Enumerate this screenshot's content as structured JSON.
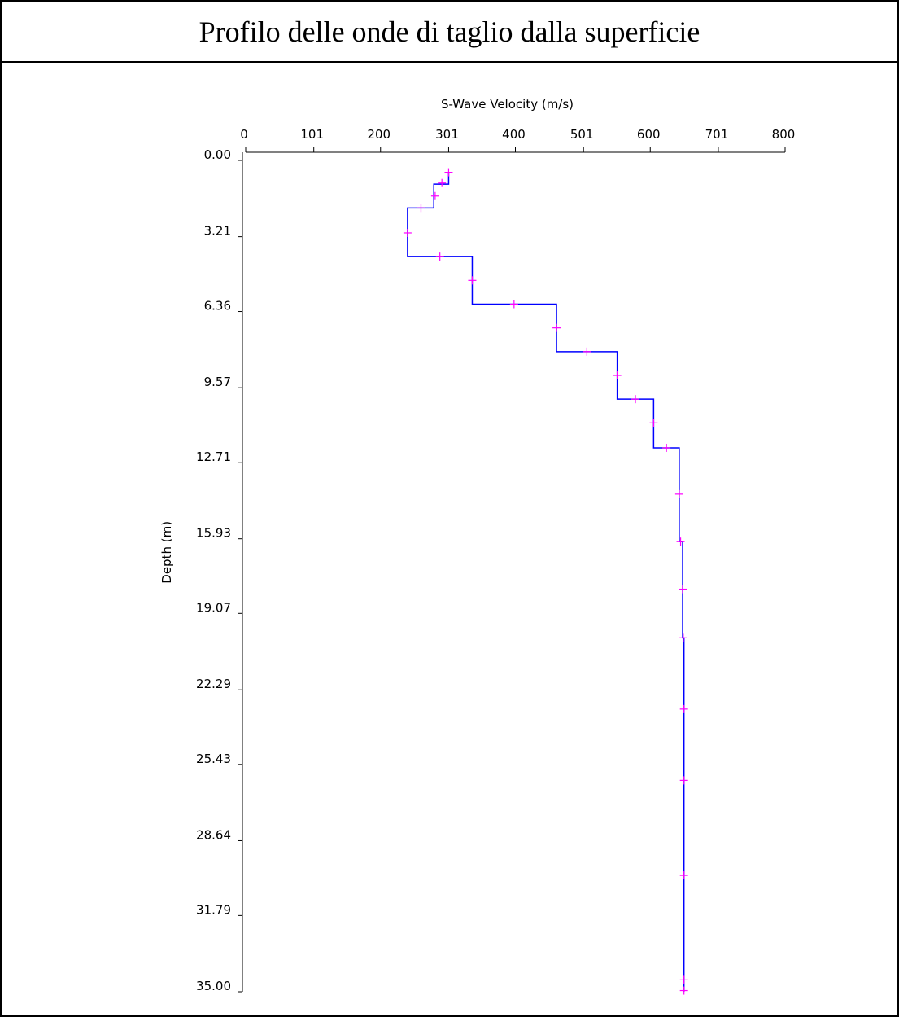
{
  "title": "Profilo delle onde di taglio dalla superficie",
  "chart_data": {
    "type": "line",
    "xlabel": "S-Wave Velocity (m/s)",
    "ylabel": "Depth (m)",
    "x_axis_position": "top",
    "y_axis_inverted": true,
    "xlim": [
      0,
      800
    ],
    "ylim": [
      0,
      35
    ],
    "x_ticks": [
      {
        "value": 0,
        "label": "0"
      },
      {
        "value": 101,
        "label": "101"
      },
      {
        "value": 200,
        "label": "200"
      },
      {
        "value": 301,
        "label": "301"
      },
      {
        "value": 400,
        "label": "400"
      },
      {
        "value": 501,
        "label": "501"
      },
      {
        "value": 600,
        "label": "600"
      },
      {
        "value": 701,
        "label": "701"
      },
      {
        "value": 800,
        "label": "800"
      }
    ],
    "y_ticks": [
      {
        "value": 0.0,
        "label": "0.00"
      },
      {
        "value": 3.21,
        "label": "3.21"
      },
      {
        "value": 6.36,
        "label": "6.36"
      },
      {
        "value": 9.57,
        "label": "9.57"
      },
      {
        "value": 12.71,
        "label": "12.71"
      },
      {
        "value": 15.93,
        "label": "15.93"
      },
      {
        "value": 19.07,
        "label": "19.07"
      },
      {
        "value": 22.29,
        "label": "22.29"
      },
      {
        "value": 25.43,
        "label": "25.43"
      },
      {
        "value": 28.64,
        "label": "28.64"
      },
      {
        "value": 31.79,
        "label": "31.79"
      },
      {
        "value": 35.0,
        "label": "35.00"
      }
    ],
    "grid": false,
    "line_color": "#0000ff",
    "marker_color": "#ff00ff",
    "profile": [
      {
        "velocity": 301,
        "top": 0.5,
        "bottom": 1.0
      },
      {
        "velocity": 279,
        "top": 1.0,
        "bottom": 2.0
      },
      {
        "velocity": 240,
        "top": 2.0,
        "bottom": 4.05
      },
      {
        "velocity": 336,
        "top": 4.05,
        "bottom": 6.05
      },
      {
        "velocity": 461,
        "top": 6.05,
        "bottom": 8.05
      },
      {
        "velocity": 551,
        "top": 8.05,
        "bottom": 10.05
      },
      {
        "velocity": 605,
        "top": 10.05,
        "bottom": 12.1
      },
      {
        "velocity": 643,
        "top": 12.1,
        "bottom": 16.05
      },
      {
        "velocity": 648,
        "top": 16.05,
        "bottom": 20.1
      },
      {
        "velocity": 650,
        "top": 20.1,
        "bottom": 35.0
      }
    ],
    "markers": [
      {
        "x": 301,
        "y": 0.5
      },
      {
        "x": 291,
        "y": 0.95
      },
      {
        "x": 281,
        "y": 1.5
      },
      {
        "x": 260,
        "y": 2.0
      },
      {
        "x": 240,
        "y": 3.05
      },
      {
        "x": 288,
        "y": 4.05
      },
      {
        "x": 336,
        "y": 5.05
      },
      {
        "x": 398,
        "y": 6.05
      },
      {
        "x": 461,
        "y": 7.05
      },
      {
        "x": 506,
        "y": 8.05
      },
      {
        "x": 551,
        "y": 9.05
      },
      {
        "x": 578,
        "y": 10.05
      },
      {
        "x": 605,
        "y": 11.05
      },
      {
        "x": 624,
        "y": 12.1
      },
      {
        "x": 643,
        "y": 14.05
      },
      {
        "x": 645,
        "y": 16.05
      },
      {
        "x": 648,
        "y": 18.05
      },
      {
        "x": 649,
        "y": 20.1
      },
      {
        "x": 650,
        "y": 23.1
      },
      {
        "x": 650,
        "y": 26.1
      },
      {
        "x": 650,
        "y": 30.1
      },
      {
        "x": 650,
        "y": 34.5
      },
      {
        "x": 650,
        "y": 34.95
      }
    ]
  }
}
